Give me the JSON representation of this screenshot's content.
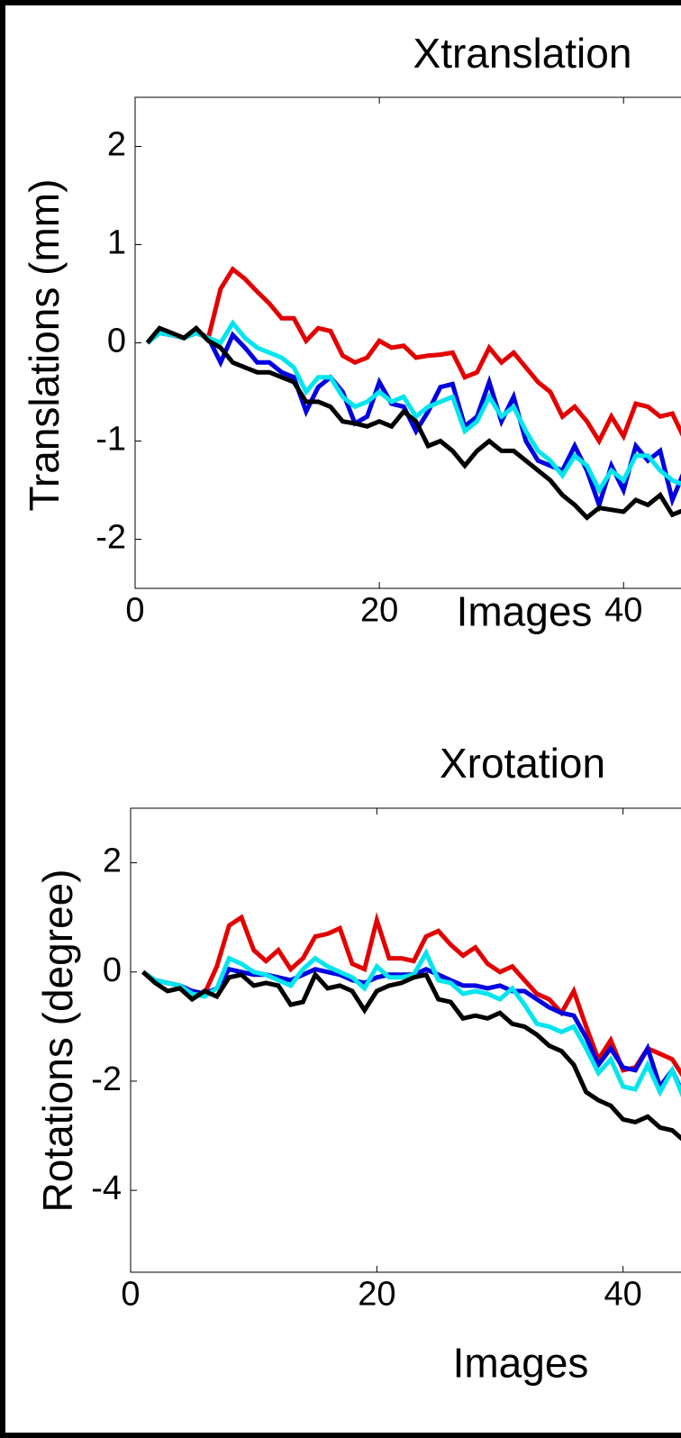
{
  "chart_data": [
    {
      "type": "line",
      "title": "Xtranslation",
      "xlabel": "Images",
      "ylabel": "Translations (mm)",
      "xlim": [
        0,
        45
      ],
      "ylim": [
        -2.5,
        2.5
      ],
      "xticks": [
        0,
        20,
        40
      ],
      "yticks": [
        2,
        1,
        0,
        -1,
        -2
      ],
      "x": [
        1,
        2,
        3,
        4,
        5,
        6,
        7,
        8,
        9,
        10,
        11,
        12,
        13,
        14,
        15,
        16,
        17,
        18,
        19,
        20,
        21,
        22,
        23,
        24,
        25,
        26,
        27,
        28,
        29,
        30,
        31,
        32,
        33,
        34,
        35,
        36,
        37,
        38,
        39,
        40,
        41,
        42,
        43,
        44,
        45
      ],
      "series": [
        {
          "color": "#e30000",
          "values": [
            0,
            0.1,
            0.08,
            0.05,
            0.12,
            0.05,
            0.55,
            0.75,
            0.65,
            0.52,
            0.4,
            0.25,
            0.25,
            0.02,
            0.15,
            0.12,
            -0.13,
            -0.2,
            -0.15,
            0.02,
            -0.05,
            -0.03,
            -0.15,
            -0.13,
            -0.12,
            -0.1,
            -0.35,
            -0.3,
            -0.05,
            -0.2,
            -0.1,
            -0.25,
            -0.4,
            -0.5,
            -0.75,
            -0.65,
            -0.8,
            -1.0,
            -0.75,
            -0.95,
            -0.62,
            -0.65,
            -0.75,
            -0.72,
            -0.98
          ]
        },
        {
          "color": "#0000e0",
          "values": [
            0,
            0.1,
            0.08,
            0.05,
            0.1,
            0.05,
            -0.2,
            0.08,
            -0.05,
            -0.2,
            -0.2,
            -0.3,
            -0.35,
            -0.7,
            -0.45,
            -0.35,
            -0.5,
            -0.82,
            -0.75,
            -0.4,
            -0.62,
            -0.65,
            -0.9,
            -0.7,
            -0.45,
            -0.42,
            -0.85,
            -0.75,
            -0.4,
            -0.8,
            -0.55,
            -1.0,
            -1.2,
            -1.25,
            -1.3,
            -1.05,
            -1.3,
            -1.65,
            -1.25,
            -1.5,
            -1.05,
            -1.2,
            -1.1,
            -1.6,
            -1.3
          ]
        },
        {
          "color": "#00e5ee",
          "values": [
            0,
            0.1,
            0.08,
            0.05,
            0.1,
            0.05,
            0,
            0.2,
            0.05,
            -0.05,
            -0.1,
            -0.15,
            -0.25,
            -0.5,
            -0.35,
            -0.35,
            -0.55,
            -0.65,
            -0.6,
            -0.5,
            -0.6,
            -0.55,
            -0.75,
            -0.65,
            -0.6,
            -0.55,
            -0.9,
            -0.8,
            -0.55,
            -0.75,
            -0.65,
            -0.9,
            -1.1,
            -1.2,
            -1.35,
            -1.15,
            -1.25,
            -1.5,
            -1.3,
            -1.4,
            -1.15,
            -1.15,
            -1.3,
            -1.4,
            -1.45
          ]
        },
        {
          "color": "#000000",
          "values": [
            0,
            0.15,
            0.1,
            0.05,
            0.15,
            0.02,
            -0.05,
            -0.2,
            -0.25,
            -0.3,
            -0.3,
            -0.35,
            -0.4,
            -0.6,
            -0.6,
            -0.65,
            -0.8,
            -0.82,
            -0.85,
            -0.8,
            -0.85,
            -0.7,
            -0.8,
            -1.05,
            -1.0,
            -1.1,
            -1.25,
            -1.1,
            -1.0,
            -1.1,
            -1.1,
            -1.2,
            -1.3,
            -1.4,
            -1.55,
            -1.65,
            -1.78,
            -1.68,
            -1.7,
            -1.72,
            -1.6,
            -1.65,
            -1.55,
            -1.75,
            -1.7
          ]
        }
      ]
    },
    {
      "type": "line",
      "title": "Xrotation",
      "xlabel": "Images",
      "ylabel": "Rotations (degree)",
      "xlim": [
        0,
        45
      ],
      "ylim": [
        -5.5,
        3
      ],
      "xticks": [
        0,
        20,
        40
      ],
      "yticks": [
        2,
        0,
        -2,
        -4
      ],
      "x": [
        1,
        2,
        3,
        4,
        5,
        6,
        7,
        8,
        9,
        10,
        11,
        12,
        13,
        14,
        15,
        16,
        17,
        18,
        19,
        20,
        21,
        22,
        23,
        24,
        25,
        26,
        27,
        28,
        29,
        30,
        31,
        32,
        33,
        34,
        35,
        36,
        37,
        38,
        39,
        40,
        41,
        42,
        43,
        44,
        45
      ],
      "series": [
        {
          "color": "#e30000",
          "values": [
            0,
            -0.15,
            -0.2,
            -0.25,
            -0.35,
            -0.4,
            0.1,
            0.85,
            1.0,
            0.4,
            0.2,
            0.4,
            0.05,
            0.25,
            0.65,
            0.7,
            0.8,
            0.15,
            0.05,
            0.95,
            0.25,
            0.25,
            0.2,
            0.65,
            0.75,
            0.5,
            0.3,
            0.45,
            0.15,
            0.0,
            0.1,
            -0.15,
            -0.4,
            -0.5,
            -0.75,
            -0.35,
            -1.0,
            -1.6,
            -1.25,
            -1.8,
            -1.75,
            -1.4,
            -1.5,
            -1.6,
            -1.95
          ]
        },
        {
          "color": "#0000e0",
          "values": [
            0,
            -0.15,
            -0.2,
            -0.25,
            -0.35,
            -0.4,
            -0.3,
            0.05,
            0.0,
            -0.05,
            -0.05,
            -0.1,
            -0.15,
            -0.05,
            0.05,
            0.0,
            -0.05,
            -0.15,
            -0.2,
            -0.1,
            -0.05,
            -0.05,
            -0.05,
            0.05,
            -0.05,
            -0.15,
            -0.25,
            -0.25,
            -0.3,
            -0.25,
            -0.35,
            -0.35,
            -0.5,
            -0.65,
            -0.75,
            -0.8,
            -1.2,
            -1.7,
            -1.4,
            -1.75,
            -1.8,
            -1.4,
            -2.1,
            -1.8,
            -2.3
          ]
        },
        {
          "color": "#00e5ee",
          "values": [
            0,
            -0.15,
            -0.2,
            -0.25,
            -0.4,
            -0.45,
            -0.3,
            0.25,
            0.15,
            0.0,
            -0.05,
            -0.15,
            -0.25,
            0.05,
            0.25,
            0.1,
            0.0,
            -0.1,
            -0.3,
            0.1,
            -0.1,
            -0.1,
            -0.05,
            0.35,
            -0.15,
            -0.2,
            -0.4,
            -0.35,
            -0.4,
            -0.5,
            -0.3,
            -0.6,
            -0.95,
            -1.0,
            -1.1,
            -1.0,
            -1.4,
            -1.85,
            -1.6,
            -2.1,
            -2.15,
            -1.7,
            -2.2,
            -1.8,
            -2.35
          ]
        },
        {
          "color": "#000000",
          "values": [
            0,
            -0.2,
            -0.35,
            -0.3,
            -0.5,
            -0.35,
            -0.45,
            -0.1,
            -0.05,
            -0.25,
            -0.2,
            -0.25,
            -0.6,
            -0.55,
            -0.05,
            -0.3,
            -0.25,
            -0.35,
            -0.7,
            -0.35,
            -0.25,
            -0.2,
            -0.1,
            -0.05,
            -0.5,
            -0.55,
            -0.85,
            -0.8,
            -0.85,
            -0.75,
            -0.95,
            -1.0,
            -1.15,
            -1.35,
            -1.45,
            -1.7,
            -2.2,
            -2.35,
            -2.45,
            -2.7,
            -2.75,
            -2.65,
            -2.85,
            -2.9,
            -3.1
          ]
        }
      ]
    }
  ]
}
